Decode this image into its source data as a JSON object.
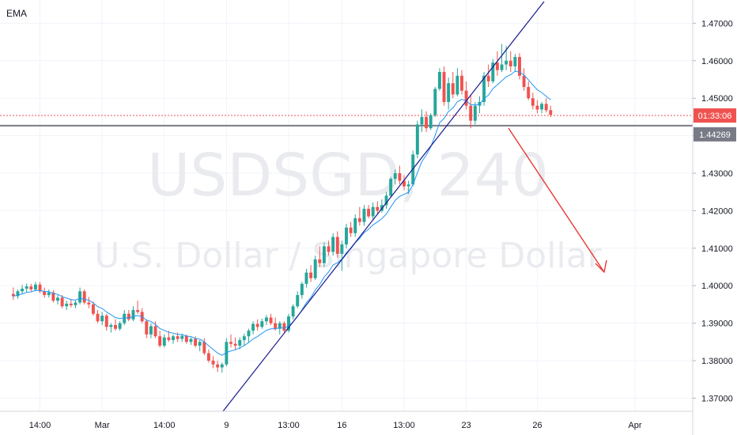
{
  "indicator_label": "EMA",
  "watermark": {
    "symbol": "USDSGD",
    "interval": "240",
    "description": "U.S. Dollar / Singapore Dollar"
  },
  "current_price_tag": {
    "label": "01:33:06",
    "color": "#ef5350"
  },
  "horizontal_level_tag": {
    "label": "1.44269",
    "color": "#787b86"
  },
  "colors": {
    "up": "#26a69a",
    "down": "#ef5350",
    "ema": "#2196f3",
    "trendline": "#1a1a8e",
    "arrow": "#e53935"
  },
  "chart_data": {
    "type": "candlestick",
    "title": "",
    "y_axis": {
      "ticks": [
        1.37,
        1.38,
        1.39,
        1.4,
        1.41,
        1.42,
        1.43,
        1.44,
        1.45,
        1.46,
        1.47
      ],
      "tick_labels": [
        "1.37000",
        "1.38000",
        "1.39000",
        "1.40000",
        "1.41000",
        "1.42000",
        "1.43000",
        "1.44000",
        "1.45000",
        "1.46000",
        "1.47000"
      ],
      "range": [
        1.3665,
        1.4762
      ]
    },
    "x_axis": {
      "tick_labels": [
        "14:00",
        "Mar",
        "14:00",
        "9",
        "13:00",
        "16",
        "13:00",
        "23",
        "26",
        "Apr"
      ],
      "tick_bar_index": [
        6,
        20,
        34,
        48,
        62,
        74,
        88,
        102,
        118,
        140
      ],
      "bar_range": [
        -3,
        153
      ]
    },
    "grid": true,
    "current_price": 1.4454,
    "horizontal_level": 1.44269,
    "candles": [
      [
        1.3978,
        1.3995,
        1.3962,
        1.3972
      ],
      [
        1.3972,
        1.399,
        1.3965,
        1.3985
      ],
      [
        1.3985,
        1.4002,
        1.3978,
        1.3992
      ],
      [
        1.3992,
        1.4006,
        1.3982,
        1.3998
      ],
      [
        1.3998,
        1.4005,
        1.3985,
        1.399
      ],
      [
        1.399,
        1.401,
        1.3985,
        1.4003
      ],
      [
        1.4003,
        1.401,
        1.398,
        1.3985
      ],
      [
        1.3985,
        1.3995,
        1.3968,
        1.3975
      ],
      [
        1.3975,
        1.399,
        1.3968,
        1.3982
      ],
      [
        1.3982,
        1.3988,
        1.3955,
        1.396
      ],
      [
        1.396,
        1.3975,
        1.395,
        1.3968
      ],
      [
        1.3968,
        1.3975,
        1.394,
        1.3945
      ],
      [
        1.3945,
        1.396,
        1.3935,
        1.3952
      ],
      [
        1.3952,
        1.3965,
        1.3942,
        1.3948
      ],
      [
        1.3948,
        1.396,
        1.394,
        1.3955
      ],
      [
        1.3955,
        1.3995,
        1.395,
        1.3985
      ],
      [
        1.3985,
        1.399,
        1.395,
        1.3955
      ],
      [
        1.3955,
        1.397,
        1.394,
        1.395
      ],
      [
        1.395,
        1.3958,
        1.392,
        1.3925
      ],
      [
        1.3925,
        1.3935,
        1.39,
        1.3905
      ],
      [
        1.3905,
        1.393,
        1.3895,
        1.392
      ],
      [
        1.392,
        1.3925,
        1.388,
        1.389
      ],
      [
        1.389,
        1.39,
        1.3875,
        1.3895
      ],
      [
        1.3895,
        1.391,
        1.388,
        1.3885
      ],
      [
        1.3885,
        1.3905,
        1.388,
        1.39
      ],
      [
        1.39,
        1.3935,
        1.3895,
        1.3925
      ],
      [
        1.3925,
        1.3935,
        1.3905,
        1.391
      ],
      [
        1.391,
        1.3945,
        1.3905,
        1.3935
      ],
      [
        1.3935,
        1.396,
        1.3925,
        1.393
      ],
      [
        1.393,
        1.394,
        1.39,
        1.3905
      ],
      [
        1.3905,
        1.391,
        1.386,
        1.387
      ],
      [
        1.387,
        1.39,
        1.386,
        1.3892
      ],
      [
        1.3892,
        1.3905,
        1.386,
        1.3865
      ],
      [
        1.3865,
        1.388,
        1.3835,
        1.384
      ],
      [
        1.384,
        1.387,
        1.3835,
        1.3862
      ],
      [
        1.3862,
        1.388,
        1.385,
        1.3855
      ],
      [
        1.3855,
        1.387,
        1.3845,
        1.3865
      ],
      [
        1.3865,
        1.3875,
        1.385,
        1.3858
      ],
      [
        1.3858,
        1.3872,
        1.385,
        1.3866
      ],
      [
        1.3866,
        1.387,
        1.3845,
        1.385
      ],
      [
        1.385,
        1.3862,
        1.3842,
        1.3858
      ],
      [
        1.3858,
        1.3865,
        1.3835,
        1.384
      ],
      [
        1.384,
        1.3855,
        1.3825,
        1.385
      ],
      [
        1.385,
        1.386,
        1.3815,
        1.382
      ],
      [
        1.382,
        1.383,
        1.3795,
        1.38
      ],
      [
        1.38,
        1.3812,
        1.378,
        1.379
      ],
      [
        1.379,
        1.38,
        1.377,
        1.3782
      ],
      [
        1.3782,
        1.3795,
        1.3768,
        1.379
      ],
      [
        1.379,
        1.386,
        1.3785,
        1.385
      ],
      [
        1.385,
        1.387,
        1.3835,
        1.3845
      ],
      [
        1.3845,
        1.3862,
        1.3828,
        1.384
      ],
      [
        1.384,
        1.3862,
        1.383,
        1.3855
      ],
      [
        1.3855,
        1.3872,
        1.384,
        1.3865
      ],
      [
        1.3865,
        1.3885,
        1.385,
        1.388
      ],
      [
        1.388,
        1.3905,
        1.387,
        1.3898
      ],
      [
        1.3898,
        1.391,
        1.388,
        1.389
      ],
      [
        1.389,
        1.3912,
        1.3885,
        1.3905
      ],
      [
        1.3905,
        1.3922,
        1.3895,
        1.3915
      ],
      [
        1.3915,
        1.3925,
        1.3895,
        1.39
      ],
      [
        1.39,
        1.3915,
        1.388,
        1.3885
      ],
      [
        1.3885,
        1.3905,
        1.387,
        1.39
      ],
      [
        1.39,
        1.3905,
        1.3875,
        1.388
      ],
      [
        1.388,
        1.3925,
        1.3875,
        1.3918
      ],
      [
        1.3918,
        1.395,
        1.391,
        1.3945
      ],
      [
        1.3945,
        1.3985,
        1.394,
        1.3975
      ],
      [
        1.3975,
        1.401,
        1.3965,
        1.4005
      ],
      [
        1.4005,
        1.4045,
        1.3995,
        1.4035
      ],
      [
        1.4035,
        1.4055,
        1.401,
        1.402
      ],
      [
        1.402,
        1.408,
        1.4015,
        1.407
      ],
      [
        1.407,
        1.4105,
        1.405,
        1.406
      ],
      [
        1.406,
        1.4115,
        1.405,
        1.4105
      ],
      [
        1.4105,
        1.412,
        1.408,
        1.409
      ],
      [
        1.409,
        1.414,
        1.408,
        1.413
      ],
      [
        1.413,
        1.4145,
        1.4075,
        1.4085
      ],
      [
        1.4085,
        1.412,
        1.404,
        1.411
      ],
      [
        1.411,
        1.4165,
        1.41,
        1.4155
      ],
      [
        1.4155,
        1.417,
        1.413,
        1.414
      ],
      [
        1.414,
        1.419,
        1.413,
        1.418
      ],
      [
        1.418,
        1.421,
        1.416,
        1.417
      ],
      [
        1.417,
        1.4215,
        1.416,
        1.4205
      ],
      [
        1.4205,
        1.4215,
        1.418,
        1.4185
      ],
      [
        1.4185,
        1.4222,
        1.4175,
        1.421
      ],
      [
        1.421,
        1.4225,
        1.419,
        1.42
      ],
      [
        1.42,
        1.423,
        1.4195,
        1.4215
      ],
      [
        1.4215,
        1.425,
        1.4205,
        1.424
      ],
      [
        1.424,
        1.429,
        1.4235,
        1.4285
      ],
      [
        1.4285,
        1.431,
        1.427,
        1.43
      ],
      [
        1.43,
        1.432,
        1.427,
        1.428
      ],
      [
        1.428,
        1.4295,
        1.4255,
        1.4265
      ],
      [
        1.4265,
        1.428,
        1.4245,
        1.427
      ],
      [
        1.427,
        1.436,
        1.4265,
        1.435
      ],
      [
        1.435,
        1.444,
        1.434,
        1.443
      ],
      [
        1.443,
        1.447,
        1.441,
        1.445
      ],
      [
        1.445,
        1.4465,
        1.441,
        1.442
      ],
      [
        1.442,
        1.446,
        1.4415,
        1.4455
      ],
      [
        1.4455,
        1.453,
        1.445,
        1.4525
      ],
      [
        1.4525,
        1.458,
        1.452,
        1.457
      ],
      [
        1.457,
        1.4585,
        1.448,
        1.449
      ],
      [
        1.449,
        1.4555,
        1.447,
        1.454
      ],
      [
        1.454,
        1.457,
        1.45,
        1.451
      ],
      [
        1.451,
        1.458,
        1.4505,
        1.456
      ],
      [
        1.456,
        1.4575,
        1.451,
        1.452
      ],
      [
        1.452,
        1.4545,
        1.447,
        1.448
      ],
      [
        1.448,
        1.451,
        1.442,
        1.444
      ],
      [
        1.444,
        1.449,
        1.443,
        1.448
      ],
      [
        1.448,
        1.4505,
        1.446,
        1.449
      ],
      [
        1.449,
        1.457,
        1.448,
        1.456
      ],
      [
        1.456,
        1.459,
        1.453,
        1.4545
      ],
      [
        1.4545,
        1.4605,
        1.454,
        1.4595
      ],
      [
        1.4595,
        1.4625,
        1.456,
        1.4575
      ],
      [
        1.4575,
        1.4645,
        1.457,
        1.459
      ],
      [
        1.459,
        1.464,
        1.4575,
        1.46
      ],
      [
        1.46,
        1.4625,
        1.457,
        1.4585
      ],
      [
        1.4585,
        1.4618,
        1.457,
        1.461
      ],
      [
        1.461,
        1.462,
        1.455,
        1.456
      ],
      [
        1.456,
        1.458,
        1.452,
        1.453
      ],
      [
        1.453,
        1.4545,
        1.4495,
        1.45
      ],
      [
        1.45,
        1.4515,
        1.447,
        1.448
      ],
      [
        1.448,
        1.4495,
        1.446,
        1.447
      ],
      [
        1.447,
        1.449,
        1.446,
        1.4485
      ],
      [
        1.4485,
        1.45,
        1.4462,
        1.4468
      ],
      [
        1.4468,
        1.448,
        1.445,
        1.4456
      ]
    ],
    "ema_start_bar": 0
  }
}
